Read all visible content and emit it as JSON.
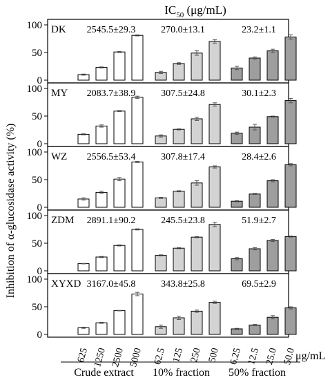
{
  "header": {
    "prefix": "IC",
    "sub": "50",
    "unit": " (μg/mL)"
  },
  "y_axis_label": "Inhibition of α-glucosidase activity (%)",
  "x_unit_label": "μg/mL",
  "colors": {
    "crude": "#ffffff",
    "fraction10": "#d3d3d3",
    "fraction50": "#9e9e9e",
    "stroke": "#000000",
    "error": "#555555"
  },
  "chart_data": {
    "type": "bar",
    "groups": [
      {
        "name": "Crude extract",
        "categories": [
          "625",
          "1250",
          "2500",
          "5000"
        ]
      },
      {
        "name": "10% fraction",
        "categories": [
          "62.5",
          "125",
          "250",
          "500"
        ]
      },
      {
        "name": "50% fraction",
        "categories": [
          "6.25",
          "12.5",
          "25.0",
          "50.0"
        ]
      }
    ],
    "ylim": [
      0,
      100
    ],
    "yticks": [
      "0",
      "50",
      "100"
    ],
    "panels": [
      {
        "name": "DK",
        "ic50": [
          "2545.5±29.3",
          "270.0±13.1",
          "23.2±1.1"
        ],
        "values": [
          [
            10,
            23,
            51,
            81
          ],
          [
            14,
            30,
            49,
            70
          ],
          [
            22,
            40,
            53,
            78
          ]
        ],
        "errors": [
          [
            1.0,
            1.0,
            1.0,
            1.0
          ],
          [
            2.0,
            1.5,
            4.0,
            3.0
          ],
          [
            3.0,
            2.0,
            3.0,
            4.0
          ]
        ]
      },
      {
        "name": "MY",
        "ic50": [
          "2083.7±38.9",
          "307.5±24.8",
          "30.1±2.3"
        ],
        "values": [
          [
            17,
            32,
            59,
            84
          ],
          [
            14,
            26,
            45,
            71
          ],
          [
            19,
            30,
            49,
            78
          ]
        ],
        "errors": [
          [
            1.0,
            2.0,
            1.0,
            2.0
          ],
          [
            2.0,
            1.0,
            3.0,
            3.0
          ],
          [
            2.0,
            5.0,
            1.0,
            4.0
          ]
        ]
      },
      {
        "name": "WZ",
        "ic50": [
          "2556.5±53.4",
          "307.8±17.4",
          "28.4±2.6"
        ],
        "values": [
          [
            15,
            27,
            51,
            82
          ],
          [
            17,
            29,
            44,
            73
          ],
          [
            11,
            24,
            48,
            77
          ]
        ],
        "errors": [
          [
            2.0,
            2.0,
            3.0,
            1.0
          ],
          [
            1.0,
            1.0,
            4.0,
            2.0
          ],
          [
            1.0,
            1.0,
            2.0,
            2.0
          ]
        ]
      },
      {
        "name": "ZDM",
        "ic50": [
          "2891.1±90.2",
          "245.5±23.8",
          "51.9±2.7"
        ],
        "values": [
          [
            13,
            25,
            46,
            75
          ],
          [
            28,
            41,
            61,
            84
          ],
          [
            22,
            40,
            55,
            62
          ]
        ],
        "errors": [
          [
            0.5,
            1.0,
            1.0,
            1.0
          ],
          [
            1.0,
            1.0,
            1.0,
            4.0
          ],
          [
            2.0,
            2.0,
            2.0,
            1.0
          ]
        ]
      },
      {
        "name": "XYXD",
        "ic50": [
          "3167.0±45.8",
          "343.8±25.8",
          "69.5±2.9"
        ],
        "values": [
          [
            12,
            21,
            43,
            73
          ],
          [
            14,
            30,
            42,
            58
          ],
          [
            10,
            17,
            31,
            48
          ]
        ],
        "errors": [
          [
            1.0,
            1.0,
            0.5,
            3.0
          ],
          [
            3.0,
            3.0,
            2.0,
            2.0
          ],
          [
            1.0,
            1.0,
            3.0,
            2.0
          ]
        ]
      }
    ]
  }
}
